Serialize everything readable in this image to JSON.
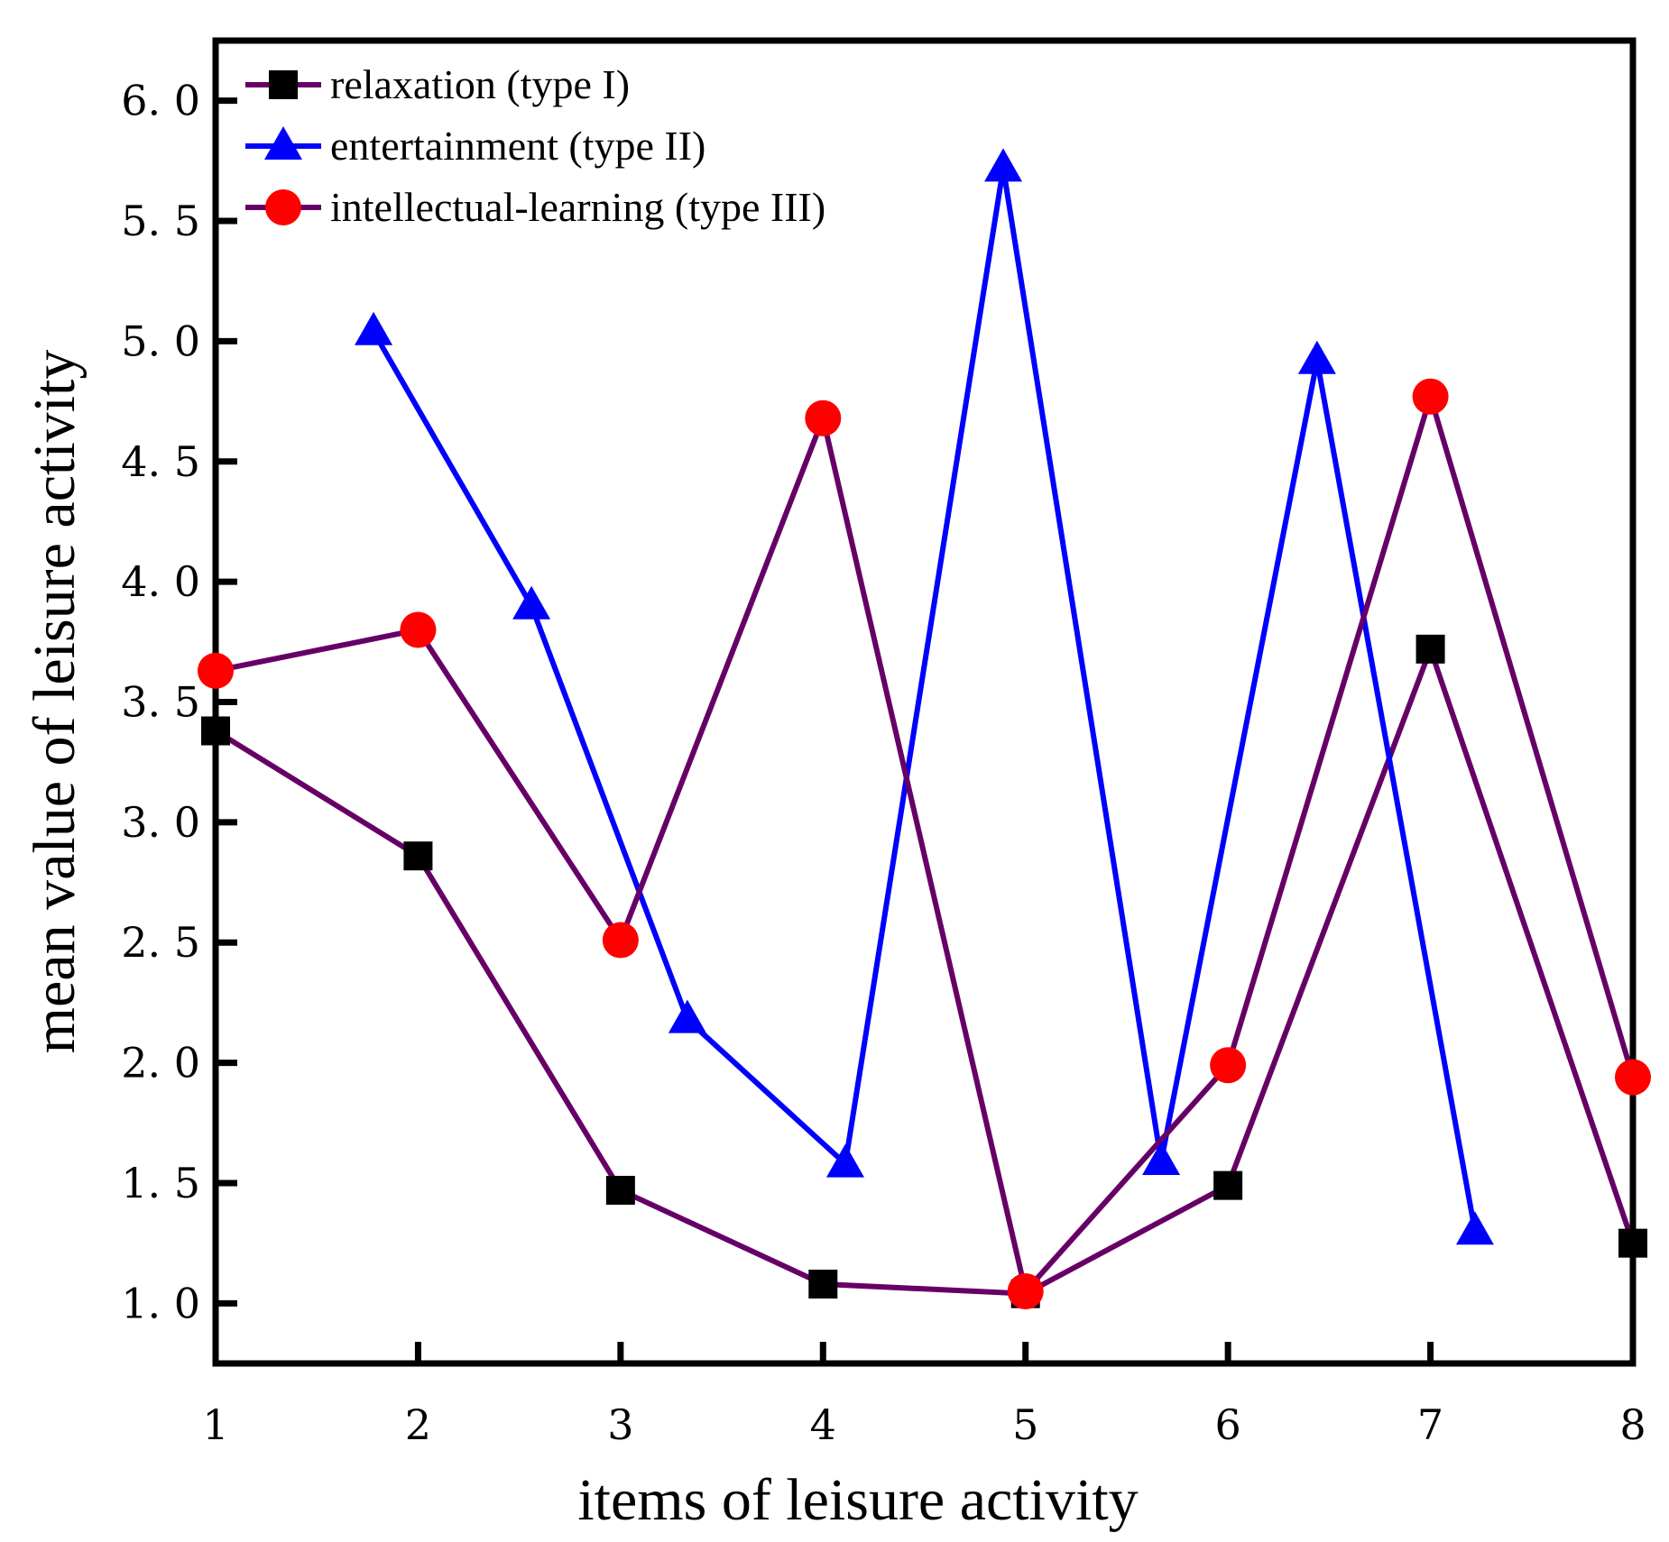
{
  "chart_data": {
    "type": "line",
    "title": "",
    "xlabel": "items of leisure activity",
    "ylabel": "mean value of leisure activity",
    "xlim": [
      1,
      8
    ],
    "ylim": [
      0.75,
      6.25
    ],
    "x_ticks": [
      "1",
      "2",
      "3",
      "4",
      "5",
      "6",
      "7",
      "8"
    ],
    "y_ticks": [
      "1. 0",
      "1. 5",
      "2. 0",
      "2. 5",
      "3. 0",
      "3. 5",
      "4. 0",
      "4. 5",
      "5. 0",
      "5. 5",
      "6. 0"
    ],
    "y_tick_values": [
      1.0,
      1.5,
      2.0,
      2.5,
      3.0,
      3.5,
      4.0,
      4.5,
      5.0,
      5.5,
      6.0
    ],
    "grid": false,
    "legend_position": "top-left",
    "series": [
      {
        "name": "relaxation (type I)",
        "marker": "square",
        "line_color": "#660066",
        "marker_color": "#000000",
        "x": [
          1,
          2,
          3,
          4,
          5,
          6,
          7,
          8
        ],
        "values": [
          3.38,
          2.86,
          1.47,
          1.08,
          1.04,
          1.49,
          3.72,
          1.25
        ]
      },
      {
        "name": "entertainment (type II)",
        "marker": "triangle",
        "line_color": "#0000ff",
        "marker_color": "#0000ff",
        "x": [
          1.78,
          2.56,
          3.33,
          4.11,
          4.89,
          5.67,
          6.44,
          7.22
        ],
        "values": [
          5.04,
          3.9,
          2.18,
          1.58,
          5.72,
          1.59,
          4.92,
          1.3
        ]
      },
      {
        "name": "intellectual-learning (type III)",
        "marker": "circle",
        "line_color": "#660066",
        "marker_color": "#ff0000",
        "x": [
          1,
          2,
          3,
          4,
          5,
          6,
          7,
          8
        ],
        "values": [
          3.63,
          3.8,
          2.51,
          4.68,
          1.05,
          1.99,
          4.77,
          1.94
        ]
      }
    ]
  }
}
